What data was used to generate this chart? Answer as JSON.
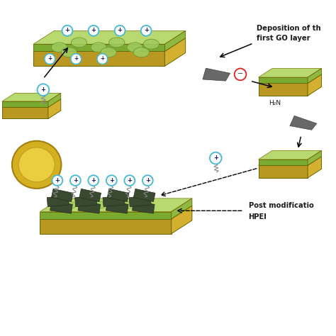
{
  "bg_color": "#ffffff",
  "yellow_top": "#e8c84a",
  "yellow_side": "#b89820",
  "yellow_right": "#d4b030",
  "green_top": "#b8d870",
  "green_side": "#7aaa30",
  "gray_go": "#606060",
  "gray_go_dark": "#383838",
  "gray_flake": "#686868",
  "cyan_color": "#45b8d5",
  "text_color": "#1a1a1a",
  "plus_text": "#1a1a60",
  "red_circle": "#dd2222",
  "title1": "Deposition of th",
  "title1b": "first GO layer",
  "title2": "Post modificatio",
  "title2b": "HPEI",
  "label_h2n": "H₂N",
  "figsize": [
    4.74,
    4.74
  ],
  "dpi": 100
}
